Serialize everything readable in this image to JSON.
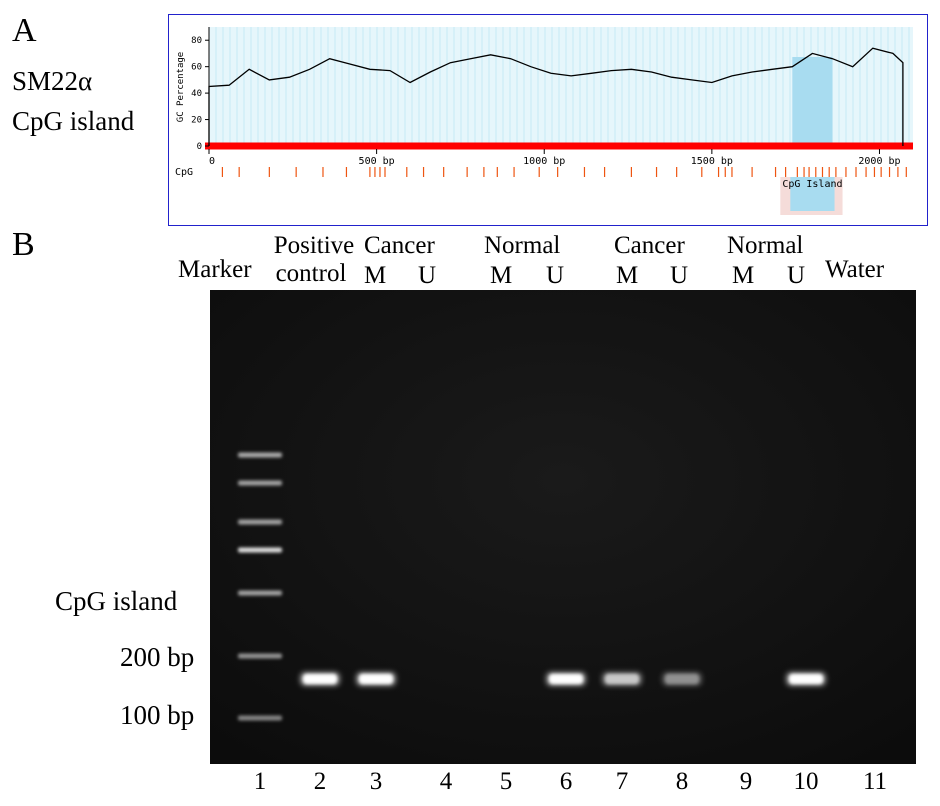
{
  "panel_a": {
    "letter": "A",
    "side_title_line1": "SM22α",
    "side_title_line2": "CpG island",
    "y_axis_label": "GC Percentage",
    "y_ticks": [
      "0",
      "20",
      "40",
      "60",
      "80"
    ],
    "x_ticks": [
      "0",
      "500 bp",
      "1000 bp",
      "1500 bp",
      "2000 bp"
    ],
    "cpg_track_label": "CpG",
    "island_label": "CpG Island",
    "colors": {
      "frame": "#2222cc",
      "plot_bg": "#e6f6fb",
      "grid": "#bfe6f2",
      "island": "#a8dcf0",
      "baseline": "#ff0000",
      "cpg_tick": "#ee5511"
    }
  },
  "panel_b": {
    "letter": "B",
    "headers": {
      "marker": "Marker",
      "positive_line1": "Positive",
      "positive_line2": "control",
      "cancer1": "Cancer",
      "normal1": "Normal",
      "cancer2": "Cancer",
      "normal2": "Normal",
      "water": "Water",
      "m": "M",
      "u": "U"
    },
    "side_labels": {
      "cpg": "CpG island",
      "bp200": "200 bp",
      "bp100": "100 bp"
    },
    "lane_numbers": [
      "1",
      "2",
      "3",
      "4",
      "5",
      "6",
      "7",
      "8",
      "9",
      "10",
      "11"
    ],
    "band_intensity": [
      0,
      1.0,
      1.0,
      0,
      0,
      1.0,
      0.7,
      0.4,
      0,
      1.0,
      0
    ]
  },
  "chart_data": {
    "type": "line",
    "title": "",
    "xlabel": "",
    "ylabel": "GC Percentage",
    "xlim": [
      0,
      2100
    ],
    "ylim": [
      0,
      90
    ],
    "series": [
      {
        "x": [
          0,
          60,
          120,
          180,
          240,
          300,
          360,
          420,
          480,
          540,
          600,
          660,
          720,
          780,
          840,
          900,
          960,
          1020,
          1080,
          1140,
          1200,
          1260,
          1320,
          1380,
          1440,
          1500,
          1560,
          1620,
          1680,
          1740,
          1800,
          1860,
          1920,
          1980,
          2040,
          2070
        ],
        "values": [
          45,
          46,
          58,
          50,
          52,
          58,
          66,
          62,
          58,
          57,
          48,
          56,
          63,
          66,
          69,
          66,
          60,
          55,
          53,
          55,
          57,
          58,
          56,
          52,
          50,
          48,
          53,
          56,
          58,
          60,
          70,
          66,
          60,
          74,
          70,
          63
        ]
      }
    ],
    "highlight_x": [
      1740,
      1860
    ],
    "cpg_sites": [
      40,
      90,
      180,
      260,
      340,
      410,
      480,
      495,
      510,
      525,
      590,
      640,
      700,
      770,
      820,
      860,
      910,
      985,
      1040,
      1120,
      1180,
      1260,
      1335,
      1395,
      1470,
      1520,
      1540,
      1560,
      1620,
      1690,
      1720,
      1755,
      1775,
      1790,
      1810,
      1830,
      1850,
      1870,
      1900,
      1930,
      1960,
      1985,
      2005,
      2030,
      2055,
      2080
    ],
    "grid": true
  }
}
